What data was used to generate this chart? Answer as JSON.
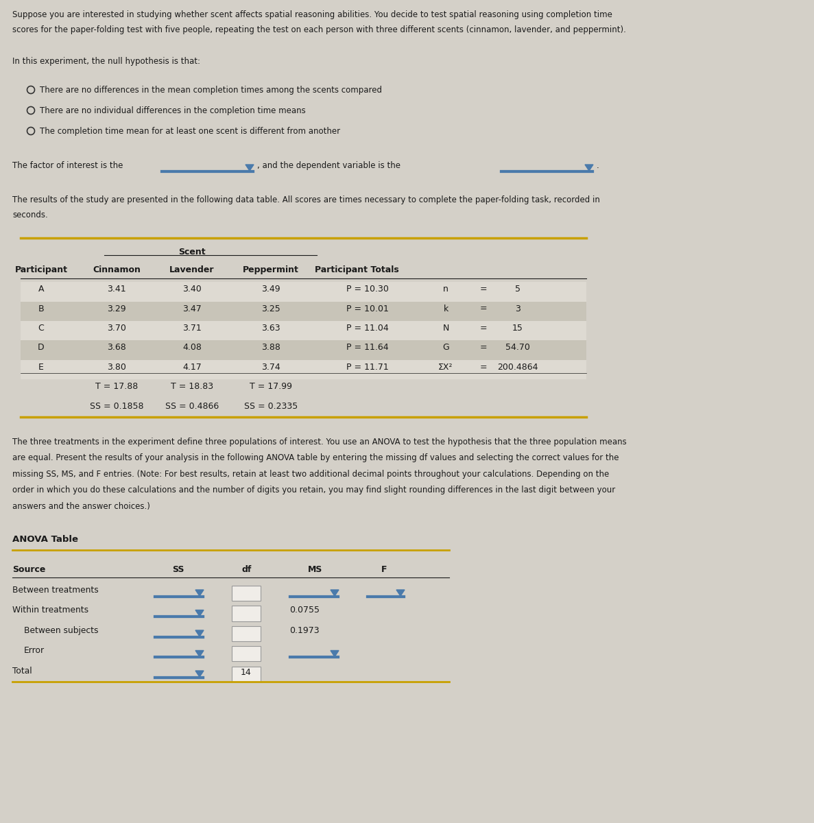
{
  "bg_color": "#d4d0c8",
  "text_color": "#1a1a1a",
  "intro_text": "Suppose you are interested in studying whether scent affects spatial reasoning abilities. You decide to test spatial reasoning using completion time\nscores for the paper-folding test with five people, repeating the test on each person with three different scents (cinnamon, lavender, and peppermint).",
  "null_hypothesis_intro": "In this experiment, the null hypothesis is that:",
  "options": [
    "There are no differences in the mean completion times among the scents compared",
    "There are no individual differences in the completion time means",
    "The completion time mean for at least one scent is different from another"
  ],
  "factor_text": "The factor of interest is the",
  "dependent_text": ", and the dependent variable is the",
  "results_text": "The results of the study are presented in the following data table. All scores are times necessary to complete the paper-folding task, recorded in\nseconds.",
  "table_header_scent": "Scent",
  "table_cols": [
    "Participant",
    "Cinnamon",
    "Lavender",
    "Peppermint",
    "Participant Totals"
  ],
  "table_rows": [
    [
      "A",
      "3.41",
      "3.40",
      "3.49",
      "P = 10.30",
      "n",
      "=",
      "5"
    ],
    [
      "B",
      "3.29",
      "3.47",
      "3.25",
      "P = 10.01",
      "k",
      "=",
      "3"
    ],
    [
      "C",
      "3.70",
      "3.71",
      "3.63",
      "P = 11.04",
      "N",
      "=",
      "15"
    ],
    [
      "D",
      "3.68",
      "4.08",
      "3.88",
      "P = 11.64",
      "G",
      "=",
      "54.70"
    ],
    [
      "E",
      "3.80",
      "4.17",
      "3.74",
      "P = 11.71",
      "ΣX²",
      "=",
      "200.4864"
    ]
  ],
  "table_T_row": [
    "T = 17.88",
    "T = 18.83",
    "T = 17.99"
  ],
  "table_SS_row": [
    "SS = 0.1858",
    "SS = 0.4866",
    "SS = 0.2335"
  ],
  "anova_intro": "The three treatments in the experiment define three populations of interest. You use an ANOVA to test the hypothesis that the three population means\nare equal. Present the results of your analysis in the following ANOVA table by entering the missing df values and selecting the correct values for the\nmissing SS, MS, and F entries. (Note: For best results, retain at least two additional decimal points throughout your calculations. Depending on the\norder in which you do these calculations and the number of digits you retain, you may find slight rounding differences in the last digit between your\nanswers and the answer choices.)",
  "anova_title": "ANOVA Table",
  "anova_sources": [
    "Between treatments",
    "Within treatments",
    "Between subjects",
    "Error",
    "Total"
  ],
  "anova_ms_vals": [
    "",
    "0.0755",
    "0.1973",
    "",
    ""
  ],
  "anova_df_vals": [
    "",
    "",
    "",
    "",
    "14"
  ],
  "gold_color": "#c8a000",
  "table_bg_dark": "#c8c4b8",
  "table_bg_light": "#dedad2",
  "dropdown_blue": "#4a7aab",
  "box_bg": "#f0ede8"
}
